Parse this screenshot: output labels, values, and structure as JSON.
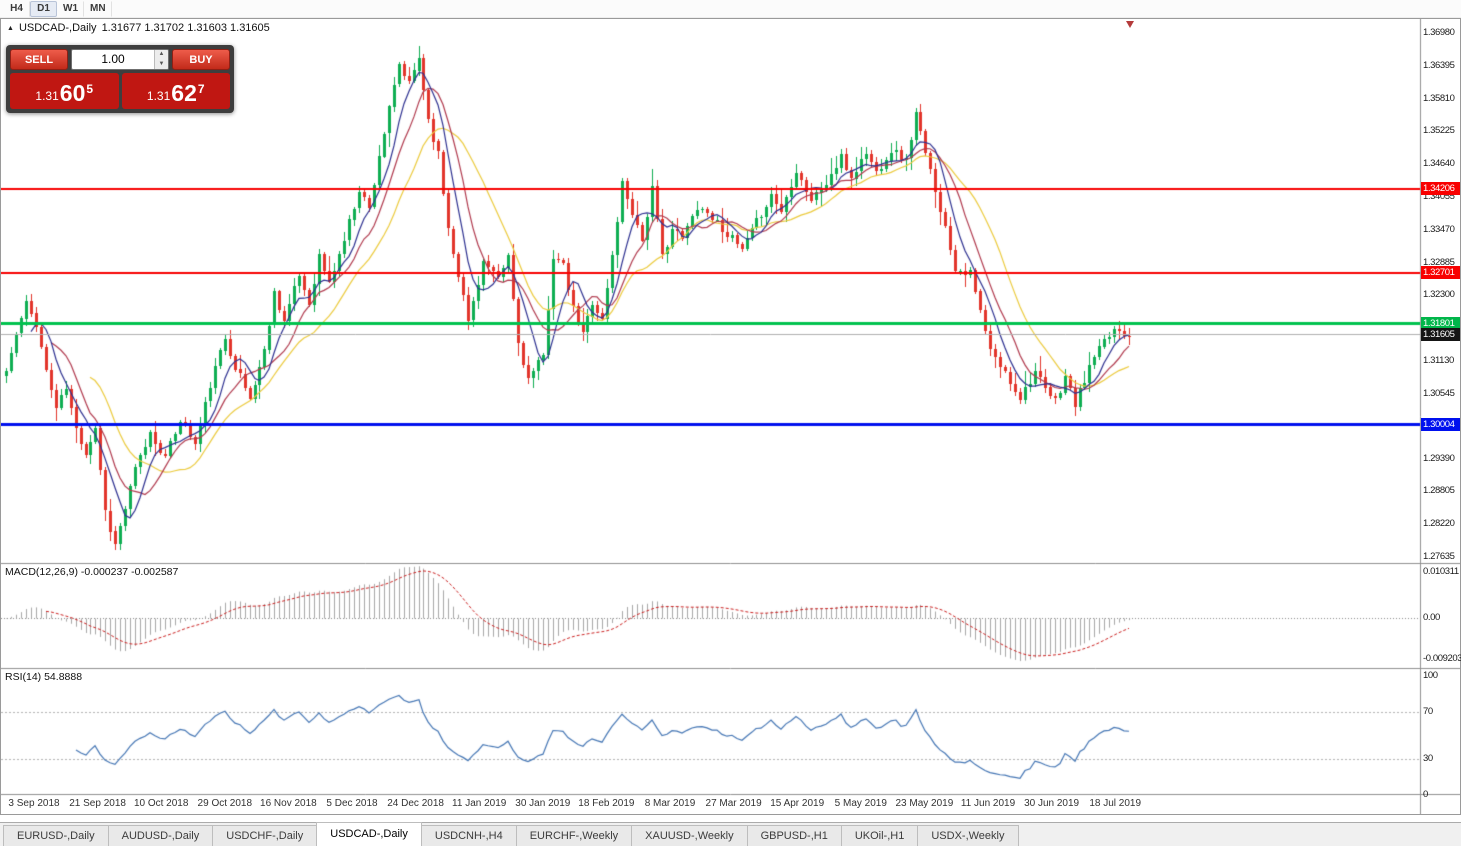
{
  "toolbar": {
    "timeframes": [
      "H4",
      "D1",
      "W1",
      "MN"
    ],
    "active": "D1"
  },
  "chart": {
    "title_symbol": "USDCAD-,Daily",
    "ohlc_text": "1.31677 1.31702 1.31603 1.31605"
  },
  "trade_panel": {
    "sell_label": "SELL",
    "buy_label": "BUY",
    "volume": "1.00",
    "bid": {
      "prefix": "1.31",
      "big": "60",
      "sup": "5"
    },
    "ask": {
      "prefix": "1.31",
      "big": "62",
      "sup": "7"
    }
  },
  "tabs": {
    "labels": [
      "EURUSD-,Daily",
      "AUDUSD-,Daily",
      "USDCHF-,Daily",
      "USDCAD-,Daily",
      "USDCNH-,H4",
      "EURCHF-,Weekly",
      "XAUUSD-,Weekly",
      "GBPUSD-,H1",
      "UKOil-,H1",
      "USDX-,Weekly"
    ],
    "active_index": 3
  },
  "chart_data": {
    "type": "candlestick",
    "symbol": "USDCAD",
    "timeframe": "Daily",
    "current_ohlc": {
      "open": 1.31677,
      "high": 1.31702,
      "low": 1.31603,
      "close": 1.31605
    },
    "bid": 1.31605,
    "ask": 1.31627,
    "current_price": 1.31605,
    "seed": 11,
    "candles_per_label": 13,
    "x_labels": [
      "3 Sep 2018",
      "21 Sep 2018",
      "10 Oct 2018",
      "29 Oct 2018",
      "16 Nov 2018",
      "5 Dec 2018",
      "24 Dec 2018",
      "11 Jan 2019",
      "30 Jan 2019",
      "18 Feb 2019",
      "8 Mar 2019",
      "27 Mar 2019",
      "15 Apr 2019",
      "5 May 2019",
      "23 May 2019",
      "11 Jun 2019",
      "30 Jun 2019",
      "18 Jul 2019"
    ],
    "price_axis_labels": [
      "1.36980",
      "1.36395",
      "1.35810",
      "1.35225",
      "1.34640",
      "1.34055",
      "1.33470",
      "1.32885",
      "1.32300",
      "1.31130",
      "1.30545",
      "1.29390",
      "1.28805",
      "1.28220",
      "1.27635"
    ],
    "price_anchors": [
      [
        0,
        1.3095
      ],
      [
        2,
        1.316
      ],
      [
        4,
        1.3215
      ],
      [
        6,
        1.318
      ],
      [
        8,
        1.3095
      ],
      [
        10,
        1.303
      ],
      [
        12,
        1.3065
      ],
      [
        14,
        1.299
      ],
      [
        16,
        1.295
      ],
      [
        18,
        1.2995
      ],
      [
        20,
        1.2845
      ],
      [
        22,
        1.2785
      ],
      [
        24,
        1.285
      ],
      [
        26,
        1.292
      ],
      [
        29,
        1.2985
      ],
      [
        32,
        1.294
      ],
      [
        35,
        1.301
      ],
      [
        38,
        1.2965
      ],
      [
        41,
        1.307
      ],
      [
        44,
        1.3155
      ],
      [
        46,
        1.3105
      ],
      [
        49,
        1.3045
      ],
      [
        52,
        1.313
      ],
      [
        54,
        1.3235
      ],
      [
        56,
        1.3185
      ],
      [
        59,
        1.3265
      ],
      [
        61,
        1.3215
      ],
      [
        63,
        1.33
      ],
      [
        65,
        1.325
      ],
      [
        68,
        1.333
      ],
      [
        71,
        1.342
      ],
      [
        73,
        1.3385
      ],
      [
        75,
        1.348
      ],
      [
        77,
        1.356
      ],
      [
        79,
        1.364
      ],
      [
        81,
        1.3605
      ],
      [
        83,
        1.3655
      ],
      [
        85,
        1.3545
      ],
      [
        87,
        1.348
      ],
      [
        89,
        1.335
      ],
      [
        91,
        1.327
      ],
      [
        93,
        1.3185
      ],
      [
        96,
        1.329
      ],
      [
        99,
        1.3255
      ],
      [
        101,
        1.33
      ],
      [
        103,
        1.3145
      ],
      [
        105,
        1.308
      ],
      [
        108,
        1.312
      ],
      [
        110,
        1.33
      ],
      [
        112,
        1.328
      ],
      [
        114,
        1.3205
      ],
      [
        116,
        1.316
      ],
      [
        118,
        1.322
      ],
      [
        120,
        1.3185
      ],
      [
        122,
        1.33
      ],
      [
        124,
        1.343
      ],
      [
        126,
        1.338
      ],
      [
        128,
        1.333
      ],
      [
        130,
        1.342
      ],
      [
        132,
        1.33
      ],
      [
        134,
        1.335
      ],
      [
        136,
        1.333
      ],
      [
        139,
        1.339
      ],
      [
        142,
        1.337
      ],
      [
        145,
        1.334
      ],
      [
        148,
        1.331
      ],
      [
        151,
        1.336
      ],
      [
        154,
        1.341
      ],
      [
        156,
        1.338
      ],
      [
        159,
        1.3455
      ],
      [
        162,
        1.34
      ],
      [
        165,
        1.343
      ],
      [
        168,
        1.3475
      ],
      [
        170,
        1.344
      ],
      [
        173,
        1.3485
      ],
      [
        175,
        1.345
      ],
      [
        178,
        1.349
      ],
      [
        181,
        1.347
      ],
      [
        183,
        1.3555
      ],
      [
        185,
        1.348
      ],
      [
        187,
        1.342
      ],
      [
        189,
        1.335
      ],
      [
        191,
        1.328
      ],
      [
        194,
        1.327
      ],
      [
        196,
        1.32
      ],
      [
        198,
        1.313
      ],
      [
        201,
        1.309
      ],
      [
        204,
        1.305
      ],
      [
        207,
        1.3095
      ],
      [
        209,
        1.306
      ],
      [
        211,
        1.304
      ],
      [
        213,
        1.3085
      ],
      [
        215,
        1.3035
      ],
      [
        217,
        1.308
      ],
      [
        219,
        1.312
      ],
      [
        221,
        1.3145
      ],
      [
        223,
        1.317
      ],
      [
        226,
        1.3161
      ]
    ],
    "horizontal_levels": [
      {
        "value": 1.34206,
        "color": "#f80000",
        "width": 2
      },
      {
        "value": 1.32701,
        "color": "#f80000",
        "width": 2
      },
      {
        "value": 1.31801,
        "color": "#00c24e",
        "width": 3
      },
      {
        "value": 1.30004,
        "color": "#0010ee",
        "width": 3
      }
    ],
    "price_tags": [
      {
        "text": "1.34206",
        "color": "#f80000",
        "value": 1.34206
      },
      {
        "text": "1.32701",
        "color": "#f80000",
        "value": 1.32701
      },
      {
        "text": "1.31801",
        "color": "#00b64a",
        "value": 1.31801
      },
      {
        "text": "1.31605",
        "color": "#151515",
        "value": 1.31605
      },
      {
        "text": "1.30004",
        "color": "#0010ee",
        "value": 1.30004
      }
    ],
    "moving_averages": [
      {
        "period": 6,
        "color": "#2e3191"
      },
      {
        "period": 10,
        "color": "#b13a4e"
      },
      {
        "period": 18,
        "color": "#eccb3e"
      }
    ],
    "candle_up_color": "#0fae52",
    "candle_down_color": "#e2352b",
    "macd": {
      "title": "MACD(12,26,9) -0.000237 -0.002587",
      "params": [
        12,
        26,
        9
      ],
      "current_macd": -0.000237,
      "current_signal": -0.002587,
      "axis_labels": [
        "0.010311",
        "0.00",
        "-0.009203"
      ],
      "histogram_color": "#a8a8a8",
      "signal_color": "#cc2222"
    },
    "rsi": {
      "title": "RSI(14) 54.8888",
      "period": 14,
      "current": 54.8888,
      "axis_labels": [
        "100",
        "70",
        "30",
        "0"
      ],
      "levels": [
        70,
        30
      ],
      "line_color": "#4677b5"
    }
  }
}
